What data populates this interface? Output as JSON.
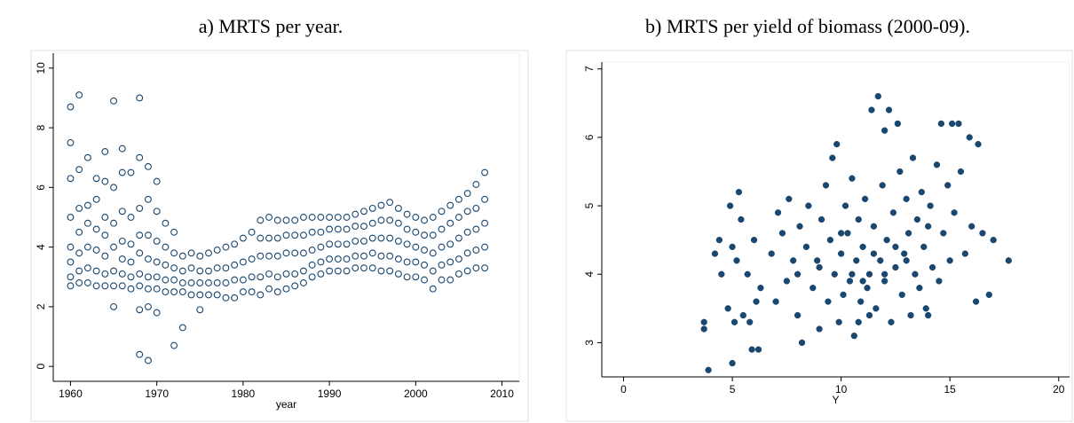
{
  "chart_data": [
    {
      "type": "scatter",
      "title": "a) MRTS per year.",
      "x_label": "year",
      "marker": "hollow",
      "color": "#1a476f",
      "xlim": [
        1958,
        2012
      ],
      "ylim": [
        -0.5,
        10.5
      ],
      "xticks": [
        1960,
        1970,
        1980,
        1990,
        2000,
        2010
      ],
      "yticks": [
        0,
        2,
        4,
        6,
        8,
        10
      ],
      "x": [
        1960,
        1961,
        1962,
        1963,
        1964,
        1965,
        1966,
        1967,
        1968,
        1969,
        1970,
        1971,
        1972,
        1973,
        1974,
        1975,
        1976,
        1977,
        1978,
        1979,
        1980,
        1981,
        1982,
        1983,
        1984,
        1985,
        1986,
        1987,
        1988,
        1989,
        1990,
        1991,
        1992,
        1993,
        1994,
        1995,
        1996,
        1997,
        1998,
        1999,
        2000,
        2001,
        2002,
        2003,
        2004,
        2005,
        2006,
        2007,
        2008
      ],
      "values": [
        [
          2.7,
          3.0,
          3.5,
          4.0,
          5.0,
          6.3,
          7.5,
          8.7
        ],
        [
          2.8,
          3.2,
          3.8,
          4.5,
          5.3,
          6.6,
          9.1
        ],
        [
          2.8,
          3.3,
          4.0,
          4.8,
          5.4,
          7.0
        ],
        [
          2.7,
          3.2,
          3.9,
          4.6,
          5.6,
          6.3
        ],
        [
          2.7,
          3.1,
          3.7,
          4.4,
          5.0,
          6.2,
          7.2
        ],
        [
          2.0,
          2.7,
          3.2,
          4.0,
          4.8,
          6.0,
          8.9
        ],
        [
          2.7,
          3.1,
          3.6,
          4.2,
          5.2,
          6.5,
          7.3
        ],
        [
          2.6,
          3.0,
          3.5,
          4.1,
          5.0,
          6.5
        ],
        [
          0.4,
          1.9,
          2.7,
          3.1,
          3.8,
          4.4,
          5.3,
          7.0,
          9.0
        ],
        [
          0.2,
          2.0,
          2.6,
          3.0,
          3.6,
          4.4,
          5.6,
          6.7
        ],
        [
          1.8,
          2.6,
          3.0,
          3.5,
          4.2,
          5.2,
          6.2
        ],
        [
          2.5,
          2.9,
          3.4,
          4.0,
          4.8
        ],
        [
          0.7,
          2.5,
          2.9,
          3.3,
          3.8,
          4.5
        ],
        [
          1.3,
          2.5,
          2.8,
          3.2,
          3.7
        ],
        [
          2.4,
          2.8,
          3.3,
          3.8
        ],
        [
          1.9,
          2.4,
          2.8,
          3.2,
          3.7
        ],
        [
          2.4,
          2.8,
          3.2,
          3.8
        ],
        [
          2.4,
          2.8,
          3.3,
          3.9
        ],
        [
          2.3,
          2.8,
          3.3,
          4.0
        ],
        [
          2.3,
          2.9,
          3.4,
          4.1
        ],
        [
          2.5,
          2.9,
          3.5,
          4.3
        ],
        [
          2.5,
          3.0,
          3.6,
          4.5
        ],
        [
          2.4,
          3.0,
          3.7,
          4.3,
          4.9
        ],
        [
          2.6,
          3.1,
          3.7,
          4.3,
          5.0
        ],
        [
          2.5,
          3.0,
          3.7,
          4.3,
          4.9
        ],
        [
          2.6,
          3.1,
          3.8,
          4.4,
          4.9
        ],
        [
          2.7,
          3.1,
          3.8,
          4.4,
          4.9
        ],
        [
          2.8,
          3.2,
          3.8,
          4.4,
          5.0
        ],
        [
          3.0,
          3.4,
          3.9,
          4.5,
          5.0
        ],
        [
          3.1,
          3.5,
          4.0,
          4.5,
          5.0
        ],
        [
          3.2,
          3.6,
          4.1,
          4.6,
          5.0
        ],
        [
          3.2,
          3.6,
          4.1,
          4.6,
          5.0
        ],
        [
          3.2,
          3.6,
          4.1,
          4.6,
          5.0
        ],
        [
          3.3,
          3.7,
          4.2,
          4.7,
          5.1
        ],
        [
          3.3,
          3.7,
          4.2,
          4.7,
          5.2
        ],
        [
          3.3,
          3.8,
          4.3,
          4.8,
          5.3
        ],
        [
          3.2,
          3.7,
          4.3,
          4.9,
          5.4
        ],
        [
          3.2,
          3.7,
          4.3,
          4.9,
          5.5
        ],
        [
          3.1,
          3.6,
          4.2,
          4.8,
          5.3
        ],
        [
          3.0,
          3.5,
          4.1,
          4.6,
          5.1
        ],
        [
          3.0,
          3.5,
          4.0,
          4.5,
          5.0
        ],
        [
          2.9,
          3.4,
          3.9,
          4.4,
          4.9
        ],
        [
          2.6,
          3.2,
          3.8,
          4.4,
          5.0
        ],
        [
          2.9,
          3.4,
          4.0,
          4.6,
          5.2
        ],
        [
          2.9,
          3.5,
          4.1,
          4.8,
          5.4
        ],
        [
          3.1,
          3.6,
          4.3,
          5.0,
          5.6
        ],
        [
          3.2,
          3.8,
          4.5,
          5.2,
          5.8
        ],
        [
          3.3,
          3.9,
          4.6,
          5.3,
          6.1
        ],
        [
          3.3,
          4.0,
          4.8,
          5.6,
          6.5
        ]
      ]
    },
    {
      "type": "scatter",
      "title": "b) MRTS per yield of biomass (2000-09).",
      "x_label": "Y",
      "marker": "filled",
      "color": "#1a476f",
      "xlim": [
        -1,
        20.5
      ],
      "ylim": [
        2.5,
        7.1
      ],
      "xticks": [
        0,
        5,
        10,
        15,
        20
      ],
      "yticks": [
        3,
        4,
        5,
        6,
        7
      ],
      "x": [
        3.7,
        3.7,
        3.9,
        4.2,
        4.4,
        4.5,
        4.8,
        4.9,
        5.0,
        5.0,
        5.1,
        5.2,
        5.3,
        5.4,
        5.5,
        5.7,
        5.8,
        5.9,
        6.0,
        6.1,
        6.2,
        6.3,
        6.8,
        7.0,
        7.1,
        7.3,
        7.5,
        7.6,
        7.8,
        8.0,
        8.1,
        8.2,
        8.4,
        8.5,
        8.7,
        8.9,
        9.0,
        9.1,
        9.3,
        9.4,
        9.5,
        9.6,
        9.7,
        9.8,
        9.9,
        10.0,
        10.1,
        10.2,
        10.3,
        10.4,
        10.5,
        10.6,
        10.7,
        10.8,
        10.9,
        11.0,
        11.1,
        11.2,
        11.3,
        11.4,
        11.5,
        11.6,
        11.7,
        11.8,
        11.9,
        12.0,
        12.0,
        12.1,
        12.2,
        12.3,
        12.4,
        12.5,
        12.6,
        12.7,
        12.8,
        12.9,
        13.0,
        13.1,
        13.2,
        13.3,
        13.4,
        13.5,
        13.6,
        13.7,
        13.8,
        13.9,
        14.0,
        14.1,
        14.2,
        14.4,
        14.5,
        14.6,
        14.7,
        14.9,
        15.0,
        15.1,
        15.2,
        15.4,
        15.5,
        15.7,
        15.9,
        16.0,
        16.2,
        16.3,
        16.5,
        16.8,
        17.0,
        17.7,
        10.5,
        11.0,
        12.5,
        11.5,
        10.0,
        13.0,
        9.0,
        12.0,
        11.3,
        10.8,
        14.0,
        8.0
      ],
      "values": [
        3.3,
        3.2,
        2.6,
        4.3,
        4.5,
        4.0,
        3.5,
        5.0,
        4.4,
        2.7,
        3.3,
        4.2,
        5.2,
        4.8,
        3.4,
        4.0,
        3.3,
        2.9,
        4.5,
        3.6,
        2.9,
        3.8,
        4.3,
        3.6,
        4.9,
        4.6,
        3.9,
        5.1,
        4.2,
        3.4,
        4.7,
        3.0,
        4.4,
        5.0,
        3.8,
        4.2,
        3.2,
        4.8,
        5.3,
        3.6,
        4.5,
        5.7,
        4.0,
        5.9,
        3.3,
        4.3,
        3.7,
        5.0,
        4.6,
        3.9,
        5.4,
        3.1,
        4.2,
        4.8,
        3.6,
        4.4,
        5.1,
        3.8,
        4.0,
        6.4,
        4.7,
        3.5,
        6.6,
        4.2,
        5.3,
        6.1,
        3.9,
        4.5,
        6.4,
        3.3,
        4.9,
        4.1,
        6.2,
        5.5,
        3.7,
        4.3,
        5.1,
        4.6,
        3.4,
        5.7,
        4.0,
        4.8,
        3.8,
        5.2,
        4.4,
        3.5,
        4.7,
        5.0,
        4.1,
        5.6,
        3.9,
        6.2,
        4.6,
        5.3,
        4.2,
        6.2,
        4.9,
        6.2,
        5.5,
        4.3,
        6.0,
        4.7,
        3.6,
        5.9,
        4.6,
        3.7,
        4.5,
        4.2,
        4.0,
        3.9,
        4.4,
        4.3,
        4.6,
        4.2,
        4.1,
        4.0,
        3.4,
        3.3,
        3.4,
        4.0
      ]
    }
  ]
}
